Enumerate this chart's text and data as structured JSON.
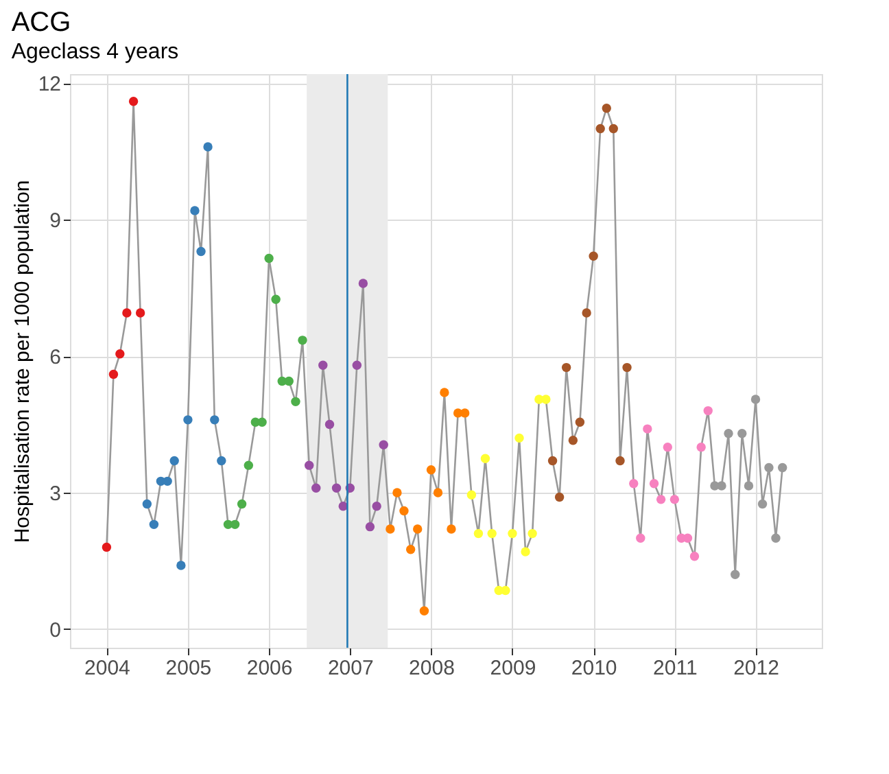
{
  "chart_data": {
    "type": "line",
    "title": "ACG",
    "subtitle": "Ageclass 4 years",
    "ylabel": "Hospitalisation rate per 1000 population",
    "x": [
      "2004-01",
      "2004-02",
      "2004-03",
      "2004-04",
      "2004-05",
      "2004-06",
      "2004-07",
      "2004-08",
      "2004-09",
      "2004-10",
      "2004-11",
      "2004-12",
      "2005-01",
      "2005-02",
      "2005-03",
      "2005-04",
      "2005-05",
      "2005-06",
      "2005-07",
      "2005-08",
      "2005-09",
      "2005-10",
      "2005-11",
      "2005-12",
      "2006-01",
      "2006-02",
      "2006-03",
      "2006-04",
      "2006-05",
      "2006-06",
      "2006-07",
      "2006-08",
      "2006-09",
      "2006-10",
      "2006-11",
      "2006-12",
      "2007-01",
      "2007-02",
      "2007-03",
      "2007-04",
      "2007-05",
      "2007-06",
      "2007-07",
      "2007-08",
      "2007-09",
      "2007-10",
      "2007-11",
      "2007-12",
      "2008-01",
      "2008-02",
      "2008-03",
      "2008-04",
      "2008-05",
      "2008-06",
      "2008-07",
      "2008-08",
      "2008-09",
      "2008-10",
      "2008-11",
      "2008-12",
      "2009-01",
      "2009-02",
      "2009-03",
      "2009-04",
      "2009-05",
      "2009-06",
      "2009-07",
      "2009-08",
      "2009-09",
      "2009-10",
      "2009-11",
      "2009-12",
      "2010-01",
      "2010-02",
      "2010-03",
      "2010-04",
      "2010-05",
      "2010-06",
      "2010-07",
      "2010-08",
      "2010-09",
      "2010-10",
      "2010-11",
      "2010-12",
      "2011-01",
      "2011-02",
      "2011-03",
      "2011-04",
      "2011-05",
      "2011-06",
      "2011-07",
      "2011-08",
      "2011-09",
      "2011-10",
      "2011-11",
      "2011-12",
      "2012-01",
      "2012-02",
      "2012-03",
      "2012-04",
      "2012-05"
    ],
    "series": [
      {
        "type": "line",
        "color": "#999999",
        "values": [
          1.8,
          5.6,
          6.05,
          6.95,
          11.6,
          6.95,
          2.75,
          2.3,
          3.25,
          3.25,
          3.7,
          1.4,
          4.6,
          9.2,
          8.3,
          10.6,
          4.6,
          3.7,
          2.3,
          2.3,
          2.75,
          3.6,
          4.55,
          4.55,
          8.15,
          7.25,
          5.45,
          5.45,
          5.0,
          6.35,
          3.6,
          3.1,
          5.8,
          4.5,
          3.1,
          2.7,
          3.1,
          5.8,
          7.6,
          2.25,
          2.7,
          4.05,
          2.2,
          3.0,
          2.6,
          1.75,
          2.2,
          0.4,
          3.5,
          3.0,
          5.2,
          2.2,
          4.75,
          4.75,
          2.95,
          2.1,
          3.75,
          2.1,
          0.85,
          0.85,
          2.1,
          4.2,
          1.7,
          2.1,
          5.05,
          5.05,
          3.7,
          2.9,
          5.75,
          4.15,
          4.55,
          6.95,
          8.2,
          11.0,
          11.45,
          11.0,
          3.7,
          5.75,
          3.2,
          2.0,
          4.4,
          3.2,
          2.85,
          4.0,
          2.85,
          2.0,
          2.0,
          1.6,
          4.0,
          4.8,
          3.15,
          3.15,
          4.3,
          1.2,
          4.3,
          3.15,
          5.05,
          2.75,
          3.55,
          2.0,
          3.55
        ]
      },
      {
        "type": "scatter",
        "color": "#e41a1c",
        "x": [
          "2004-01",
          "2004-02",
          "2004-03",
          "2004-04",
          "2004-05",
          "2004-06"
        ],
        "values": [
          1.8,
          5.6,
          6.05,
          6.95,
          11.6,
          6.95
        ]
      },
      {
        "type": "scatter",
        "color": "#377eb8",
        "x": [
          "2004-07",
          "2004-08",
          "2004-09",
          "2004-10",
          "2004-11",
          "2004-12",
          "2005-01",
          "2005-02",
          "2005-03",
          "2005-04",
          "2005-05",
          "2005-06"
        ],
        "values": [
          2.75,
          2.3,
          3.25,
          3.25,
          3.7,
          1.4,
          4.6,
          9.2,
          8.3,
          10.6,
          4.6,
          3.7
        ]
      },
      {
        "type": "scatter",
        "color": "#4daf4a",
        "x": [
          "2005-07",
          "2005-08",
          "2005-09",
          "2005-10",
          "2005-11",
          "2005-12",
          "2006-01",
          "2006-02",
          "2006-03",
          "2006-04",
          "2006-05",
          "2006-06"
        ],
        "values": [
          2.3,
          2.3,
          2.75,
          3.6,
          4.55,
          4.55,
          8.15,
          7.25,
          5.45,
          5.45,
          5.0,
          6.35
        ]
      },
      {
        "type": "scatter",
        "color": "#984ea3",
        "x": [
          "2006-07",
          "2006-08",
          "2006-09",
          "2006-10",
          "2006-11",
          "2006-12",
          "2007-01",
          "2007-02",
          "2007-03",
          "2007-04",
          "2007-05",
          "2007-06"
        ],
        "values": [
          3.6,
          3.1,
          5.8,
          4.5,
          3.1,
          2.7,
          3.1,
          5.8,
          7.6,
          2.25,
          2.7,
          4.05
        ]
      },
      {
        "type": "scatter",
        "color": "#ff7f00",
        "x": [
          "2007-07",
          "2007-08",
          "2007-09",
          "2007-10",
          "2007-11",
          "2007-12",
          "2008-01",
          "2008-02",
          "2008-03",
          "2008-04",
          "2008-05",
          "2008-06"
        ],
        "values": [
          2.2,
          3.0,
          2.6,
          1.75,
          2.2,
          0.4,
          3.5,
          3.0,
          5.2,
          2.2,
          4.75,
          4.75
        ]
      },
      {
        "type": "scatter",
        "color": "#ffff33",
        "x": [
          "2008-07",
          "2008-08",
          "2008-09",
          "2008-10",
          "2008-11",
          "2008-12",
          "2009-01",
          "2009-02",
          "2009-03",
          "2009-04",
          "2009-05",
          "2009-06"
        ],
        "values": [
          2.95,
          2.1,
          3.75,
          2.1,
          0.85,
          0.85,
          2.1,
          4.2,
          1.7,
          2.1,
          5.05,
          5.05
        ]
      },
      {
        "type": "scatter",
        "color": "#a65628",
        "x": [
          "2009-07",
          "2009-08",
          "2009-09",
          "2009-10",
          "2009-11",
          "2009-12",
          "2010-01",
          "2010-02",
          "2010-03",
          "2010-04",
          "2010-05",
          "2010-06"
        ],
        "values": [
          3.7,
          2.9,
          5.75,
          4.15,
          4.55,
          6.95,
          8.2,
          11.0,
          11.45,
          11.0,
          3.7,
          5.75
        ]
      },
      {
        "type": "scatter",
        "color": "#f781bf",
        "x": [
          "2010-07",
          "2010-08",
          "2010-09",
          "2010-10",
          "2010-11",
          "2010-12",
          "2011-01",
          "2011-02",
          "2011-03",
          "2011-04",
          "2011-05",
          "2011-06"
        ],
        "values": [
          3.2,
          2.0,
          4.4,
          3.2,
          2.85,
          4.0,
          2.85,
          2.0,
          2.0,
          1.6,
          4.0,
          4.8
        ]
      },
      {
        "type": "scatter",
        "color": "#999999",
        "x": [
          "2011-07",
          "2011-08",
          "2011-09",
          "2011-10",
          "2011-11",
          "2011-12",
          "2012-01",
          "2012-02",
          "2012-03",
          "2012-04",
          "2012-05"
        ],
        "values": [
          3.15,
          3.15,
          4.3,
          1.2,
          4.3,
          3.15,
          5.05,
          2.75,
          3.55,
          2.0,
          3.55
        ]
      }
    ],
    "xlim": [
      "2003-07-20",
      "2012-10-25"
    ],
    "xticks": [
      "2004",
      "2005",
      "2006",
      "2007",
      "2008",
      "2009",
      "2010",
      "2011",
      "2012"
    ],
    "ylim": [
      -0.41,
      12.2
    ],
    "yticks": [
      0,
      3,
      6,
      9,
      12
    ],
    "grid": true,
    "ref_lines": [
      {
        "axis": "x",
        "value": "2006-12-20",
        "color": "#1f78b4"
      }
    ],
    "bands": [
      {
        "axis": "x",
        "from": "2006-06-20",
        "to": "2007-06-20",
        "color": "#ebebeb"
      }
    ]
  }
}
